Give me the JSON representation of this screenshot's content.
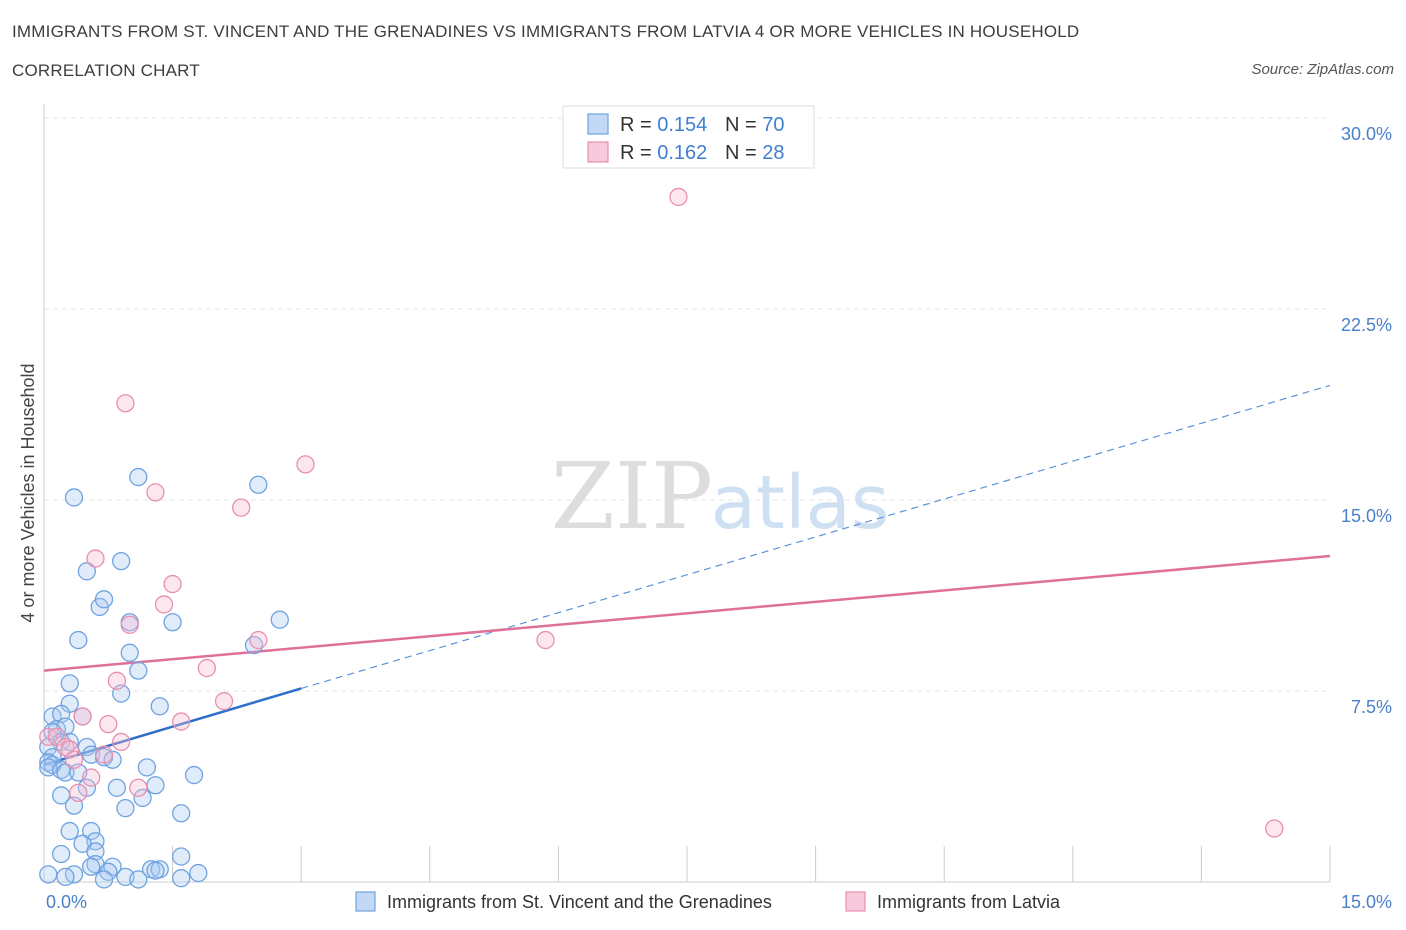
{
  "header": {
    "title": "IMMIGRANTS FROM ST. VINCENT AND THE GRENADINES VS IMMIGRANTS FROM LATVIA 4 OR MORE VEHICLES IN HOUSEHOLD",
    "subtitle": "CORRELATION CHART",
    "source": "Source: ZipAtlas.com"
  },
  "watermark": {
    "zip": "ZIP",
    "atlas": "atlas"
  },
  "legend": {
    "rows": [
      {
        "r_label": "R = ",
        "r_value": "0.154",
        "n_label": "N = ",
        "n_value": "70",
        "color": "#6fa3e0"
      },
      {
        "r_label": "R = ",
        "r_value": "0.162",
        "n_label": "N = ",
        "n_value": "28",
        "color": "#e98fb0"
      }
    ]
  },
  "chart_data": {
    "type": "scatter",
    "title": "",
    "xlabel": "",
    "ylabel": "4 or more Vehicles in Household",
    "xlim": [
      0,
      15
    ],
    "ylim": [
      0,
      30
    ],
    "x_tick_labels": [
      "0.0%",
      "15.0%"
    ],
    "y_ticks": [
      7.5,
      15,
      22.5,
      30
    ],
    "y_tick_labels": [
      "7.5%",
      "15.0%",
      "22.5%",
      "30.0%"
    ],
    "grid": true,
    "legend_position": "bottom",
    "series": [
      {
        "name": "Immigrants from St. Vincent and the Grenadines",
        "color": "#6fa3e0",
        "trend": {
          "x0": 0,
          "y0": 4.6,
          "x1": 3.0,
          "y1": 7.6,
          "dashed_to_x": 15,
          "dashed_to_y": 19.5
        },
        "points": [
          [
            0.35,
            15.1
          ],
          [
            1.1,
            15.9
          ],
          [
            2.5,
            15.6
          ],
          [
            0.5,
            12.2
          ],
          [
            0.9,
            12.6
          ],
          [
            0.65,
            10.8
          ],
          [
            0.7,
            11.1
          ],
          [
            1.0,
            10.2
          ],
          [
            1.5,
            10.2
          ],
          [
            2.75,
            10.3
          ],
          [
            0.4,
            9.5
          ],
          [
            2.45,
            9.3
          ],
          [
            1.0,
            9.0
          ],
          [
            1.1,
            8.3
          ],
          [
            0.3,
            7.8
          ],
          [
            0.9,
            7.4
          ],
          [
            1.35,
            6.9
          ],
          [
            0.3,
            7.0
          ],
          [
            0.1,
            6.5
          ],
          [
            0.2,
            6.6
          ],
          [
            0.45,
            6.5
          ],
          [
            0.15,
            6.0
          ],
          [
            0.25,
            6.1
          ],
          [
            0.1,
            5.9
          ],
          [
            0.2,
            5.5
          ],
          [
            0.3,
            5.5
          ],
          [
            0.05,
            5.3
          ],
          [
            0.5,
            5.3
          ],
          [
            0.55,
            5.0
          ],
          [
            0.1,
            4.9
          ],
          [
            0.7,
            4.9
          ],
          [
            0.05,
            4.7
          ],
          [
            0.8,
            4.8
          ],
          [
            0.1,
            4.6
          ],
          [
            0.05,
            4.5
          ],
          [
            0.2,
            4.4
          ],
          [
            0.25,
            4.3
          ],
          [
            0.4,
            4.3
          ],
          [
            1.2,
            4.5
          ],
          [
            1.75,
            4.2
          ],
          [
            0.5,
            3.7
          ],
          [
            0.85,
            3.7
          ],
          [
            1.3,
            3.8
          ],
          [
            0.2,
            3.4
          ],
          [
            1.15,
            3.3
          ],
          [
            0.35,
            3.0
          ],
          [
            0.95,
            2.9
          ],
          [
            1.6,
            2.7
          ],
          [
            0.3,
            2.0
          ],
          [
            0.55,
            2.0
          ],
          [
            0.6,
            1.6
          ],
          [
            0.45,
            1.5
          ],
          [
            0.6,
            1.2
          ],
          [
            0.2,
            1.1
          ],
          [
            1.6,
            1.0
          ],
          [
            0.6,
            0.7
          ],
          [
            0.8,
            0.6
          ],
          [
            0.55,
            0.6
          ],
          [
            1.25,
            0.5
          ],
          [
            1.35,
            0.5
          ],
          [
            1.3,
            0.45
          ],
          [
            0.75,
            0.4
          ],
          [
            1.8,
            0.35
          ],
          [
            0.35,
            0.3
          ],
          [
            0.05,
            0.3
          ],
          [
            0.95,
            0.2
          ],
          [
            1.6,
            0.15
          ],
          [
            0.7,
            0.1
          ],
          [
            0.25,
            0.2
          ],
          [
            1.1,
            0.1
          ]
        ]
      },
      {
        "name": "Immigrants from Latvia",
        "color": "#e98fb0",
        "trend": {
          "x0": 0,
          "y0": 8.3,
          "x1": 15,
          "y1": 12.8
        },
        "points": [
          [
            7.4,
            26.9
          ],
          [
            0.95,
            18.8
          ],
          [
            3.05,
            16.4
          ],
          [
            1.3,
            15.3
          ],
          [
            2.3,
            14.7
          ],
          [
            0.6,
            12.7
          ],
          [
            1.5,
            11.7
          ],
          [
            1.4,
            10.9
          ],
          [
            1.0,
            10.1
          ],
          [
            2.5,
            9.5
          ],
          [
            5.85,
            9.5
          ],
          [
            1.9,
            8.4
          ],
          [
            0.85,
            7.9
          ],
          [
            2.1,
            7.1
          ],
          [
            0.45,
            6.5
          ],
          [
            1.6,
            6.3
          ],
          [
            0.75,
            6.2
          ],
          [
            0.05,
            5.7
          ],
          [
            0.15,
            5.7
          ],
          [
            0.9,
            5.5
          ],
          [
            0.25,
            5.3
          ],
          [
            0.3,
            5.2
          ],
          [
            0.7,
            5.0
          ],
          [
            0.35,
            4.8
          ],
          [
            0.55,
            4.1
          ],
          [
            1.1,
            3.7
          ],
          [
            0.4,
            3.5
          ],
          [
            14.35,
            2.1
          ]
        ]
      }
    ]
  }
}
